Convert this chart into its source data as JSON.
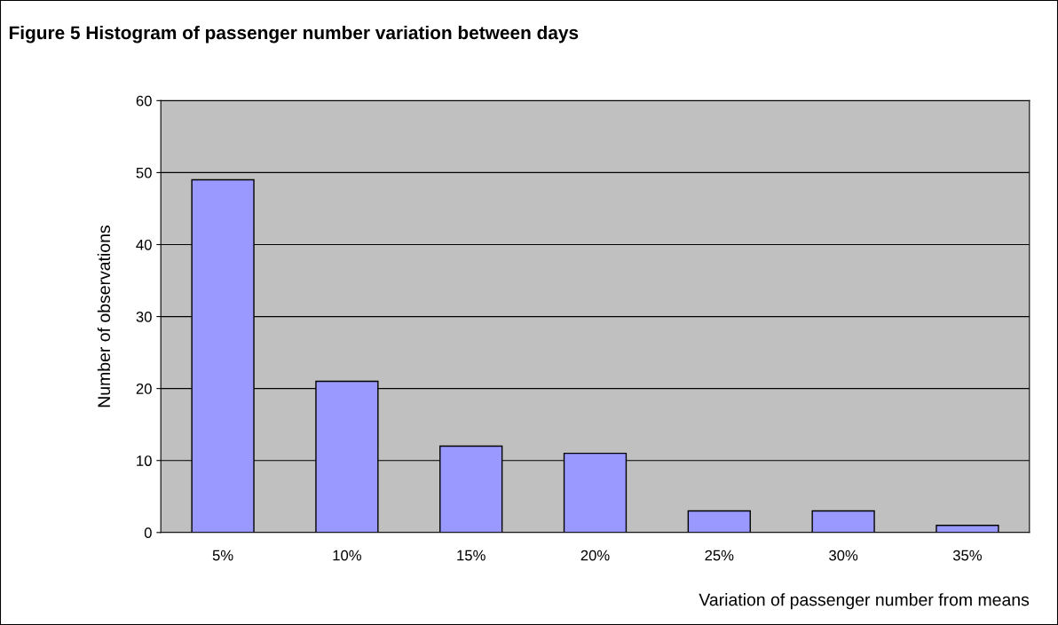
{
  "chart_data": {
    "type": "bar",
    "title": "Figure 5 Histogram of passenger number variation between days",
    "xlabel": "Variation of passenger number from means",
    "ylabel": "Number of observations",
    "categories": [
      "5%",
      "10%",
      "15%",
      "20%",
      "25%",
      "30%",
      "35%"
    ],
    "values": [
      49,
      21,
      12,
      11,
      3,
      3,
      1
    ],
    "color": "#9999ff",
    "ylim": [
      0,
      60
    ],
    "yticks": [
      0,
      10,
      20,
      30,
      40,
      50,
      60
    ],
    "grid": "y"
  }
}
